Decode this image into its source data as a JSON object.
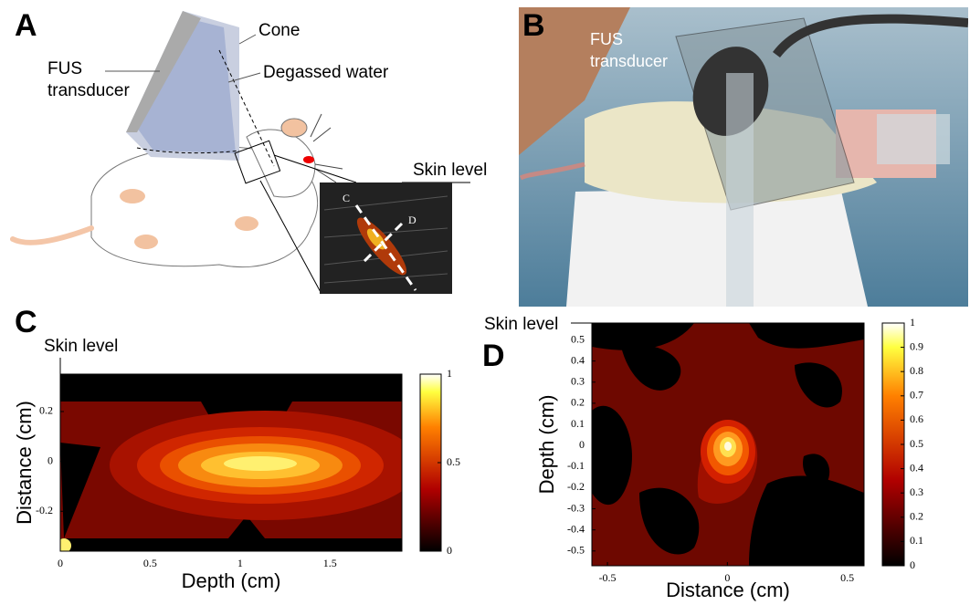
{
  "panel_a": {
    "label": "A",
    "cone": "Cone",
    "fus_transducer": [
      "FUS",
      "transducer"
    ],
    "degassed_water": "Degassed water",
    "skin_level": "Skin level",
    "inset_c": "C",
    "inset_d": "D"
  },
  "panel_b": {
    "label": "B",
    "transducer_label": [
      "FUS",
      "transducer"
    ]
  },
  "panel_c": {
    "type": "contour",
    "label": "C",
    "skin_level": "Skin level",
    "xlabel": "Depth (cm)",
    "ylabel": "Distance (cm)",
    "xlim": [
      0,
      1.9
    ],
    "xticks": [
      0,
      0.5,
      1,
      1.5
    ],
    "ylim": [
      -0.36,
      0.35
    ],
    "yticks": [
      -0.2,
      0,
      0.2
    ],
    "colorbar": {
      "lim": [
        0,
        1
      ],
      "ticks": [
        0,
        0.5,
        1
      ]
    }
  },
  "panel_d": {
    "type": "contour",
    "label": "D",
    "skin_level": "Skin level",
    "xlabel": "Distance (cm)",
    "ylabel": "Depth (cm)",
    "xlim": [
      -0.565,
      0.57
    ],
    "xticks": [
      -0.5,
      0,
      0.5
    ],
    "ylim": [
      -0.57,
      0.58
    ],
    "yticks": [
      0.5,
      0.4,
      0.3,
      0.2,
      0.1,
      0,
      -0.1,
      -0.2,
      -0.3,
      -0.4,
      -0.5
    ],
    "colorbar": {
      "lim": [
        0,
        1
      ],
      "ticks": [
        0,
        0.1,
        0.2,
        0.3,
        0.4,
        0.5,
        0.6,
        0.7,
        0.8,
        0.9,
        1
      ]
    }
  }
}
